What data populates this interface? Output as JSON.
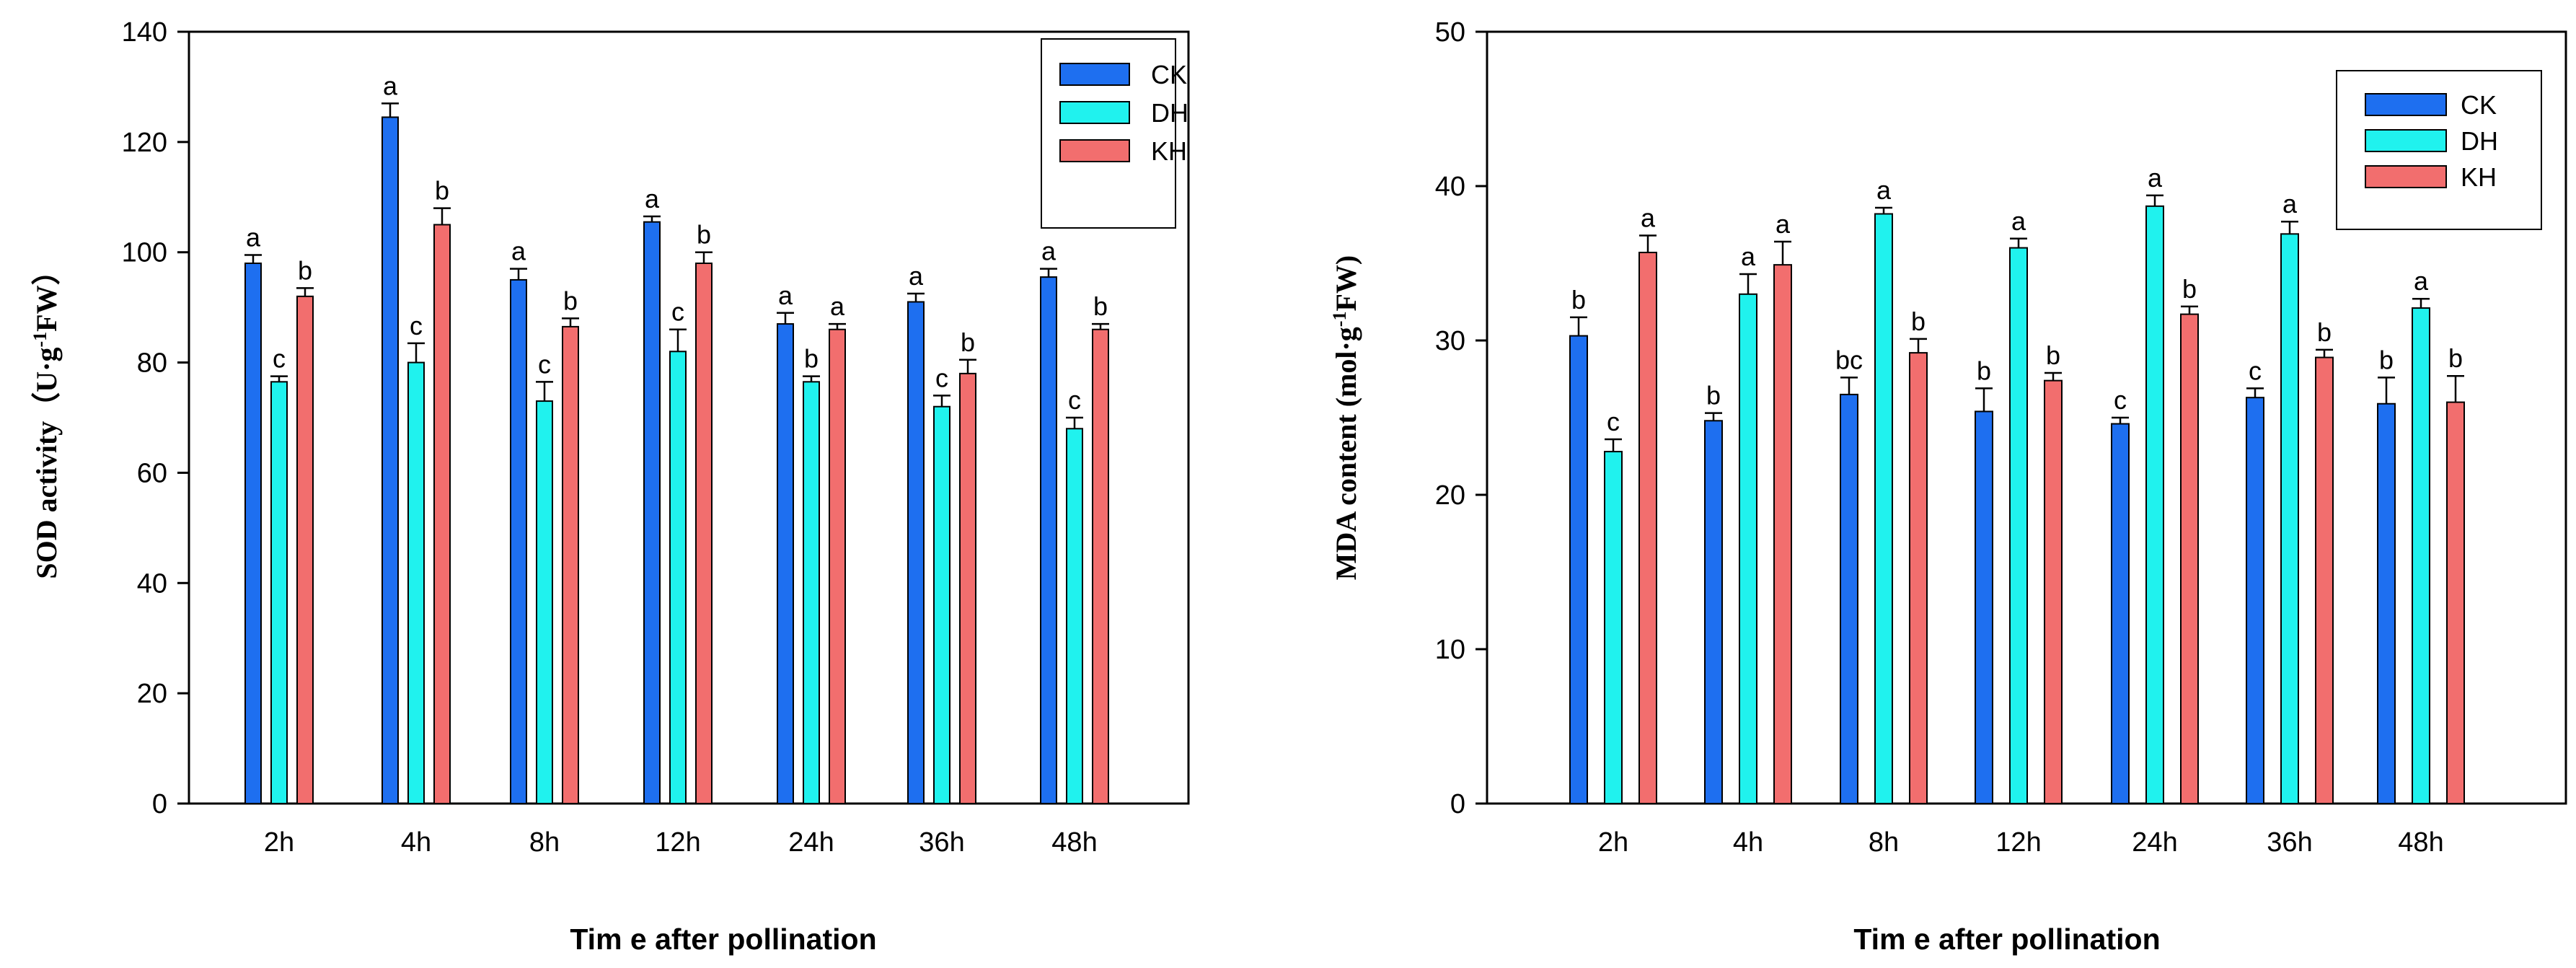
{
  "colors": {
    "CK": "#1E6FF0",
    "DH": "#20F2EE",
    "KH": "#F26E6E"
  },
  "chart_data": [
    {
      "type": "bar",
      "title": "",
      "xlabel": "Tim e after pollination",
      "ylabel": "SOD activity（U·g",
      "ylabel_sup": "-1",
      "ylabel_tail": "FW）",
      "ylim": [
        0,
        140
      ],
      "yticks": [
        "0",
        "20",
        "40",
        "60",
        "80",
        "100",
        "120",
        "140"
      ],
      "legend_position": "top-right",
      "categories": [
        "2h",
        "4h",
        "8h",
        "12h",
        "24h",
        "36h",
        "48h"
      ],
      "series": [
        {
          "name": "CK",
          "values": [
            98,
            124.5,
            95,
            105.5,
            87,
            91,
            95.5
          ],
          "errors": [
            1.5,
            2.5,
            2,
            1,
            2,
            1.5,
            1.5
          ],
          "letters": [
            "a",
            "a",
            "a",
            "a",
            "a",
            "a",
            "a"
          ]
        },
        {
          "name": "DH",
          "values": [
            76.5,
            80,
            73,
            82,
            76.5,
            72,
            68
          ],
          "errors": [
            1,
            3.5,
            3.5,
            4,
            1,
            2,
            2
          ],
          "letters": [
            "c",
            "c",
            "c",
            "c",
            "b",
            "c",
            "c"
          ]
        },
        {
          "name": "KH",
          "values": [
            92,
            105,
            86.5,
            98,
            86,
            78,
            86
          ],
          "errors": [
            1.5,
            3,
            1.5,
            2,
            1,
            2.5,
            1
          ],
          "letters": [
            "b",
            "b",
            "b",
            "b",
            "a",
            "b",
            "b"
          ]
        }
      ]
    },
    {
      "type": "bar",
      "title": "",
      "xlabel": "Tim e after pollination",
      "ylabel": "MDA content (mol·g",
      "ylabel_sup": "-1",
      "ylabel_tail": "FW)",
      "ylim": [
        0,
        50
      ],
      "yticks": [
        "0",
        "10",
        "20",
        "30",
        "40",
        "50"
      ],
      "legend_position": "top-right",
      "categories": [
        "2h",
        "4h",
        "8h",
        "12h",
        "24h",
        "36h",
        "48h"
      ],
      "series": [
        {
          "name": "CK",
          "values": [
            30.3,
            24.8,
            26.5,
            25.4,
            24.6,
            26.3,
            25.9
          ],
          "errors": [
            1.2,
            0.5,
            1.1,
            1.5,
            0.4,
            0.6,
            1.7
          ],
          "letters": [
            "b",
            "b",
            "bc",
            "b",
            "c",
            "c",
            "b"
          ]
        },
        {
          "name": "DH",
          "values": [
            22.8,
            33,
            38.2,
            36,
            38.7,
            36.9,
            32.1
          ],
          "errors": [
            0.8,
            1.3,
            0.4,
            0.6,
            0.7,
            0.8,
            0.6
          ],
          "letters": [
            "c",
            "a",
            "a",
            "a",
            "a",
            "a",
            "a"
          ]
        },
        {
          "name": "KH",
          "values": [
            35.7,
            34.9,
            29.2,
            27.4,
            31.7,
            28.9,
            26
          ],
          "errors": [
            1.1,
            1.5,
            0.9,
            0.5,
            0.5,
            0.5,
            1.7
          ],
          "letters": [
            "a",
            "a",
            "b",
            "b",
            "b",
            "b",
            "b"
          ]
        }
      ]
    }
  ]
}
